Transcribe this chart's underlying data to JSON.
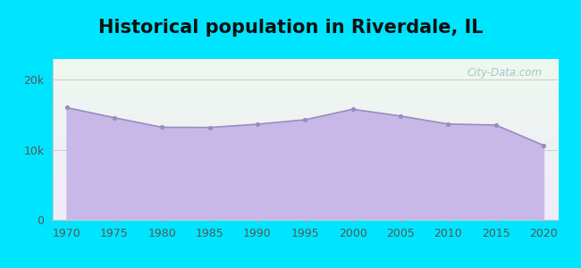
{
  "title": "Historical population in Riverdale, IL",
  "years": [
    1970,
    1975,
    1980,
    1985,
    1990,
    1995,
    2000,
    2005,
    2010,
    2015,
    2020
  ],
  "population": [
    16046,
    14600,
    13233,
    13200,
    13671,
    14305,
    15806,
    14843,
    13695,
    13549,
    10653
  ],
  "bg_outer": "#00e5ff",
  "bg_inner_top": "#edf8ee",
  "bg_inner_bottom": "#f0ecfa",
  "fill_color": "#c8b8e8",
  "line_color": "#9b8bbf",
  "dot_color": "#9b8bbf",
  "yticks": [
    0,
    10000,
    20000
  ],
  "ytick_labels": [
    "0",
    "10k",
    "20k"
  ],
  "ylim": [
    0,
    23000
  ],
  "xlim": [
    1968.5,
    2021.5
  ],
  "title_fontsize": 15,
  "tick_fontsize": 9,
  "watermark_text": "City-Data.com",
  "watermark_color": "#a0c0c8",
  "grid_color": "#cccccc"
}
